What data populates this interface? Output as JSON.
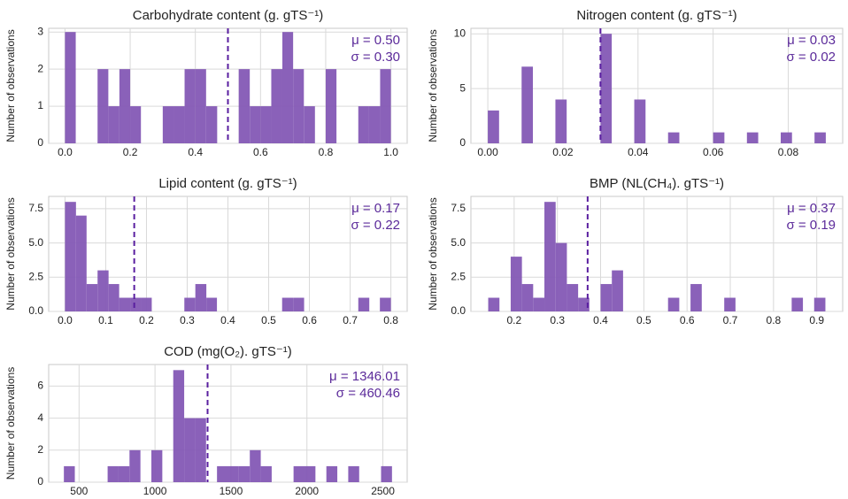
{
  "chart_data": [
    {
      "type": "histogram",
      "title": "Carbohydrate content (g. gTS⁻¹)",
      "y_label": "Number of observations",
      "color": "#8459b5",
      "bins": [
        0,
        0.033,
        0.067,
        0.1,
        0.133,
        0.167,
        0.2,
        0.233,
        0.267,
        0.3,
        0.333,
        0.367,
        0.4,
        0.433,
        0.467,
        0.5,
        0.533,
        0.567,
        0.6,
        0.633,
        0.667,
        0.7,
        0.733,
        0.767,
        0.8,
        0.833,
        0.867,
        0.9,
        0.933,
        0.967,
        1.0
      ],
      "values": [
        3,
        0,
        0,
        2,
        1,
        2,
        1,
        0,
        0,
        1,
        1,
        2,
        2,
        1,
        0,
        0,
        2,
        1,
        1,
        2,
        3,
        2,
        1,
        0,
        2,
        0,
        0,
        1,
        1,
        2
      ],
      "xlim": [
        -0.05,
        1.05
      ],
      "xticks": [
        {
          "value": 0,
          "label": "0.0"
        },
        0.2,
        0.4,
        0.6,
        0.8,
        {
          "value": 1,
          "label": "1.0"
        }
      ],
      "ylim": [
        0,
        3.1
      ],
      "yticks": [
        0,
        1,
        2,
        3
      ],
      "grid": true,
      "mean": 0.5,
      "mean_label": "μ = 0.50",
      "std_label": "σ = 0.30",
      "mean_color": "#5a1fa0"
    },
    {
      "type": "histogram",
      "title": "Nitrogen content (g. gTS⁻¹)",
      "y_label": "Number of observations",
      "color": "#8459b5",
      "bins": [
        0,
        0.003,
        0.006,
        0.009,
        0.012,
        0.015,
        0.018,
        0.021,
        0.024,
        0.027,
        0.03,
        0.033,
        0.036,
        0.039,
        0.042,
        0.045,
        0.048,
        0.051,
        0.054,
        0.057,
        0.06,
        0.063,
        0.066,
        0.069,
        0.072,
        0.075,
        0.078,
        0.081,
        0.084,
        0.087,
        0.09
      ],
      "values": [
        3,
        0,
        0,
        7,
        0,
        0,
        4,
        0,
        0,
        0,
        10,
        0,
        0,
        4,
        0,
        0,
        1,
        0,
        0,
        0,
        1,
        0,
        0,
        1,
        0,
        0,
        1,
        0,
        0,
        1
      ],
      "xlim": [
        -0.0045,
        0.0945
      ],
      "xticks": [
        {
          "value": 0,
          "label": "0.00"
        },
        0.02,
        0.04,
        0.06,
        0.08
      ],
      "ylim": [
        0,
        10.5
      ],
      "yticks": [
        0,
        5,
        10
      ],
      "grid": true,
      "mean": 0.03,
      "mean_label": "μ = 0.03",
      "std_label": "σ = 0.02",
      "mean_color": "#5a1fa0"
    },
    {
      "type": "histogram",
      "title": "Lipid content (g. gTS⁻¹)",
      "y_label": "Number of observations",
      "color": "#8459b5",
      "bins": [
        0,
        0.027,
        0.053,
        0.08,
        0.107,
        0.133,
        0.16,
        0.187,
        0.213,
        0.24,
        0.267,
        0.293,
        0.32,
        0.347,
        0.373,
        0.4,
        0.427,
        0.453,
        0.48,
        0.507,
        0.533,
        0.56,
        0.587,
        0.613,
        0.64,
        0.667,
        0.693,
        0.72,
        0.747,
        0.773,
        0.8
      ],
      "values": [
        8,
        7,
        2,
        3,
        2,
        1,
        1,
        1,
        0,
        0,
        0,
        1,
        2,
        1,
        0,
        0,
        0,
        0,
        0,
        0,
        1,
        1,
        0,
        0,
        0,
        0,
        0,
        1,
        0,
        1
      ],
      "xlim": [
        -0.04,
        0.84
      ],
      "xticks": [
        {
          "value": 0,
          "label": "0.0"
        },
        0.1,
        0.2,
        0.3,
        0.4,
        0.5,
        0.6,
        0.7,
        0.8
      ],
      "ylim": [
        0,
        8.4
      ],
      "yticks": [
        {
          "value": 0,
          "label": "0.0"
        },
        2.5,
        {
          "value": 5,
          "label": "5.0"
        },
        7.5
      ],
      "grid": true,
      "mean": 0.17,
      "mean_label": "μ = 0.17",
      "std_label": "σ = 0.22",
      "mean_color": "#5a1fa0"
    },
    {
      "type": "histogram",
      "title": "BMP (NL(CH₄). gTS⁻¹)",
      "y_label": "Number of observations",
      "color": "#8459b5",
      "bins": [
        0.14,
        0.166,
        0.192,
        0.218,
        0.244,
        0.27,
        0.296,
        0.322,
        0.348,
        0.374,
        0.4,
        0.426,
        0.452,
        0.478,
        0.504,
        0.53,
        0.556,
        0.582,
        0.608,
        0.634,
        0.66,
        0.686,
        0.712,
        0.738,
        0.764,
        0.79,
        0.816,
        0.842,
        0.868,
        0.894,
        0.92
      ],
      "values": [
        1,
        0,
        4,
        2,
        1,
        8,
        5,
        2,
        1,
        0,
        2,
        3,
        0,
        0,
        0,
        0,
        1,
        0,
        2,
        0,
        0,
        1,
        0,
        0,
        0,
        0,
        0,
        1,
        0,
        1
      ],
      "xlim": [
        0.1,
        0.96
      ],
      "xticks": [
        0.2,
        0.3,
        0.4,
        0.5,
        0.6,
        0.7,
        0.8,
        0.9
      ],
      "ylim": [
        0,
        8.4
      ],
      "yticks": [
        {
          "value": 0,
          "label": "0.0"
        },
        2.5,
        {
          "value": 5,
          "label": "5.0"
        },
        7.5
      ],
      "grid": true,
      "mean": 0.37,
      "mean_label": "μ = 0.37",
      "std_label": "σ = 0.19",
      "mean_color": "#5a1fa0"
    },
    {
      "type": "histogram",
      "title": "COD (mg(O₂). gTS⁻¹)",
      "y_label": "Number of observations",
      "color": "#8459b5",
      "bins": [
        400,
        472,
        544,
        616,
        688,
        760,
        832,
        904,
        976,
        1048,
        1120,
        1192,
        1264,
        1336,
        1408,
        1480,
        1552,
        1624,
        1696,
        1768,
        1840,
        1912,
        1984,
        2056,
        2128,
        2200,
        2272,
        2344,
        2416,
        2488,
        2560
      ],
      "values": [
        1,
        0,
        0,
        0,
        1,
        1,
        2,
        0,
        2,
        0,
        7,
        4,
        4,
        0,
        1,
        1,
        1,
        2,
        1,
        0,
        0,
        1,
        1,
        0,
        1,
        0,
        1,
        0,
        0,
        1
      ],
      "xlim": [
        300,
        2660
      ],
      "xticks": [
        500,
        1000,
        1500,
        2000,
        2500
      ],
      "ylim": [
        0,
        7.35
      ],
      "yticks": [
        0,
        2,
        4,
        6
      ],
      "grid": true,
      "mean": 1346.01,
      "mean_label": "μ = 1346.01",
      "std_label": "σ = 460.46",
      "mean_color": "#5a1fa0"
    }
  ]
}
